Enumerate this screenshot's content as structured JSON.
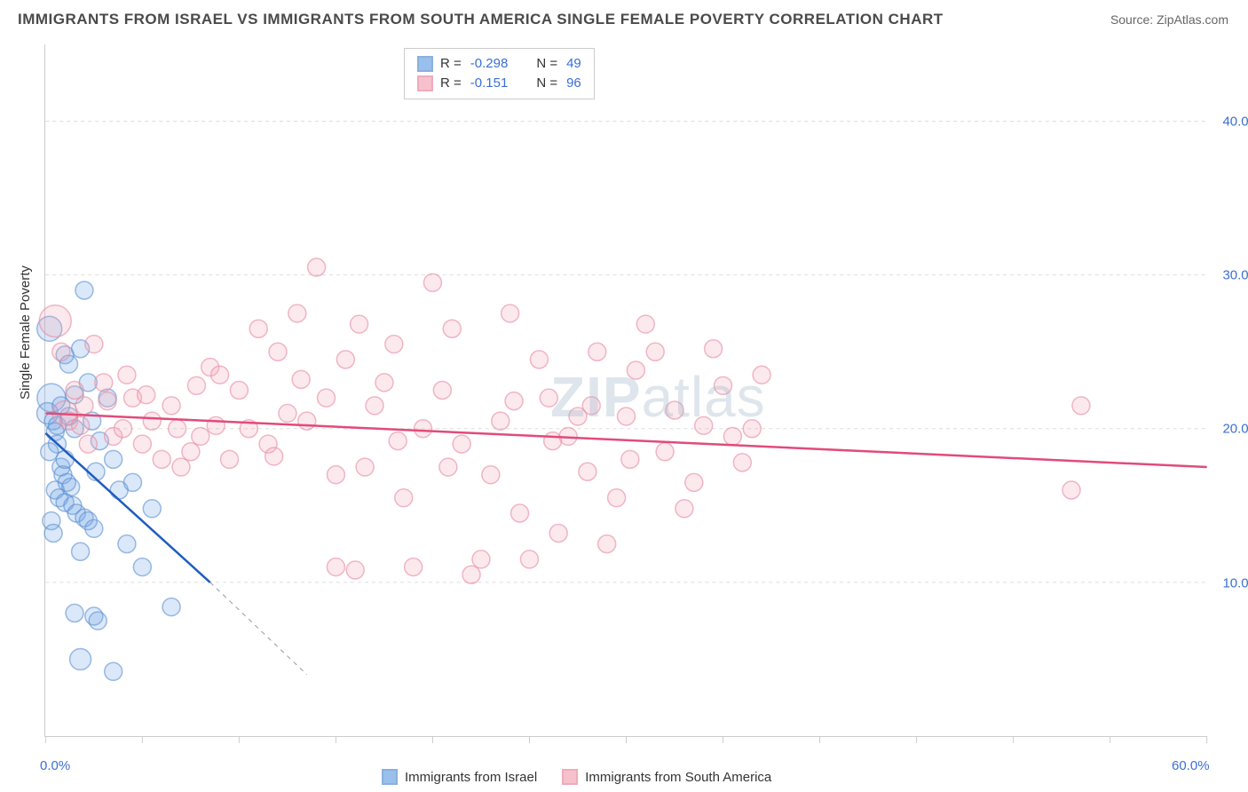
{
  "title": "IMMIGRANTS FROM ISRAEL VS IMMIGRANTS FROM SOUTH AMERICA SINGLE FEMALE POVERTY CORRELATION CHART",
  "source": "Source: ZipAtlas.com",
  "ylabel": "Single Female Poverty",
  "watermark": "ZIPatlas",
  "chart": {
    "type": "scatter",
    "xlim": [
      0,
      60
    ],
    "ylim": [
      0,
      45
    ],
    "xtick_positions": [
      0,
      5,
      10,
      15,
      20,
      25,
      30,
      35,
      40,
      45,
      50,
      55,
      60
    ],
    "xtick_labels": {
      "0": "0.0%",
      "60": "60.0%"
    },
    "ytick_positions": [
      10,
      20,
      30,
      40
    ],
    "ytick_labels": {
      "10": "10.0%",
      "20": "20.0%",
      "30": "30.0%",
      "40": "40.0%"
    },
    "grid_color": "#dddddd",
    "axis_color": "#cccccc",
    "background_color": "#ffffff",
    "tick_label_color": "#3b6fd4",
    "axis_label_color": "#333333",
    "title_color": "#4a4a4a",
    "title_fontsize": 17,
    "label_fontsize": 15,
    "marker_radius": 10,
    "marker_fill_opacity": 0.25,
    "marker_stroke_width": 1.5,
    "trendline_width": 2.5
  },
  "series": [
    {
      "id": "israel",
      "label": "Immigrants from Israel",
      "color": "#6fa5e6",
      "stroke": "#5b8fd1",
      "trend_color": "#1f5cc0",
      "R": "-0.298",
      "N": "49",
      "trendline": {
        "x1": 0,
        "y1": 19.7,
        "x2": 8.5,
        "y2": 10.0
      },
      "trendline_dashed": {
        "x1": 8.5,
        "y1": 10.0,
        "x2": 13.5,
        "y2": 4.0
      },
      "points": [
        {
          "x": 0.2,
          "y": 26.5,
          "r": 14
        },
        {
          "x": 0.3,
          "y": 22.0,
          "r": 16
        },
        {
          "x": 0.1,
          "y": 21.0,
          "r": 12
        },
        {
          "x": 0.4,
          "y": 20.5,
          "r": 10
        },
        {
          "x": 0.5,
          "y": 19.8,
          "r": 10
        },
        {
          "x": 0.6,
          "y": 19.0,
          "r": 10
        },
        {
          "x": 1.0,
          "y": 24.8,
          "r": 10
        },
        {
          "x": 1.2,
          "y": 24.2,
          "r": 10
        },
        {
          "x": 1.5,
          "y": 22.2,
          "r": 10
        },
        {
          "x": 1.8,
          "y": 25.2,
          "r": 10
        },
        {
          "x": 2.0,
          "y": 29.0,
          "r": 10
        },
        {
          "x": 2.2,
          "y": 23.0,
          "r": 10
        },
        {
          "x": 0.8,
          "y": 17.5,
          "r": 10
        },
        {
          "x": 0.9,
          "y": 17.0,
          "r": 10
        },
        {
          "x": 1.1,
          "y": 16.5,
          "r": 10
        },
        {
          "x": 1.3,
          "y": 16.2,
          "r": 10
        },
        {
          "x": 0.5,
          "y": 16.0,
          "r": 10
        },
        {
          "x": 0.7,
          "y": 15.5,
          "r": 10
        },
        {
          "x": 1.0,
          "y": 15.2,
          "r": 10
        },
        {
          "x": 1.4,
          "y": 15.0,
          "r": 10
        },
        {
          "x": 1.6,
          "y": 14.5,
          "r": 10
        },
        {
          "x": 2.0,
          "y": 14.2,
          "r": 10
        },
        {
          "x": 2.2,
          "y": 14.0,
          "r": 10
        },
        {
          "x": 2.5,
          "y": 13.5,
          "r": 10
        },
        {
          "x": 1.8,
          "y": 12.0,
          "r": 10
        },
        {
          "x": 2.8,
          "y": 19.2,
          "r": 10
        },
        {
          "x": 3.2,
          "y": 22.0,
          "r": 10
        },
        {
          "x": 3.5,
          "y": 18.0,
          "r": 10
        },
        {
          "x": 3.8,
          "y": 16.0,
          "r": 10
        },
        {
          "x": 4.5,
          "y": 16.5,
          "r": 10
        },
        {
          "x": 5.5,
          "y": 14.8,
          "r": 10
        },
        {
          "x": 1.5,
          "y": 8.0,
          "r": 10
        },
        {
          "x": 2.5,
          "y": 7.8,
          "r": 10
        },
        {
          "x": 2.7,
          "y": 7.5,
          "r": 10
        },
        {
          "x": 4.2,
          "y": 12.5,
          "r": 10
        },
        {
          "x": 6.5,
          "y": 8.4,
          "r": 10
        },
        {
          "x": 1.8,
          "y": 5.0,
          "r": 12
        },
        {
          "x": 3.5,
          "y": 4.2,
          "r": 10
        },
        {
          "x": 0.3,
          "y": 14.0,
          "r": 10
        },
        {
          "x": 0.4,
          "y": 13.2,
          "r": 10
        },
        {
          "x": 0.2,
          "y": 18.5,
          "r": 10
        },
        {
          "x": 0.6,
          "y": 20.2,
          "r": 10
        },
        {
          "x": 0.8,
          "y": 21.5,
          "r": 10
        },
        {
          "x": 1.2,
          "y": 20.8,
          "r": 10
        },
        {
          "x": 1.5,
          "y": 20.0,
          "r": 10
        },
        {
          "x": 1.0,
          "y": 18.0,
          "r": 10
        },
        {
          "x": 2.4,
          "y": 20.5,
          "r": 10
        },
        {
          "x": 2.6,
          "y": 17.2,
          "r": 10
        },
        {
          "x": 5.0,
          "y": 11.0,
          "r": 10
        }
      ]
    },
    {
      "id": "south_america",
      "label": "Immigrants from South America",
      "color": "#f5a6b8",
      "stroke": "#e68aa0",
      "trend_color": "#e14b7a",
      "R": "-0.151",
      "N": "96",
      "trendline": {
        "x1": 0,
        "y1": 21.0,
        "x2": 60,
        "y2": 17.5
      },
      "points": [
        {
          "x": 0.5,
          "y": 27.0,
          "r": 18
        },
        {
          "x": 1.0,
          "y": 21.0,
          "r": 14
        },
        {
          "x": 1.2,
          "y": 20.5,
          "r": 10
        },
        {
          "x": 1.5,
          "y": 22.5,
          "r": 10
        },
        {
          "x": 2.0,
          "y": 21.5,
          "r": 10
        },
        {
          "x": 2.5,
          "y": 25.5,
          "r": 10
        },
        {
          "x": 3.0,
          "y": 23.0,
          "r": 10
        },
        {
          "x": 3.5,
          "y": 19.5,
          "r": 10
        },
        {
          "x": 4.0,
          "y": 20.0,
          "r": 10
        },
        {
          "x": 4.5,
          "y": 22.0,
          "r": 10
        },
        {
          "x": 5.0,
          "y": 19.0,
          "r": 10
        },
        {
          "x": 5.5,
          "y": 20.5,
          "r": 10
        },
        {
          "x": 6.0,
          "y": 18.0,
          "r": 10
        },
        {
          "x": 6.5,
          "y": 21.5,
          "r": 10
        },
        {
          "x": 7.0,
          "y": 17.5,
          "r": 10
        },
        {
          "x": 7.5,
          "y": 18.5,
          "r": 10
        },
        {
          "x": 8.0,
          "y": 19.5,
          "r": 10
        },
        {
          "x": 8.5,
          "y": 24.0,
          "r": 10
        },
        {
          "x": 9.0,
          "y": 23.5,
          "r": 10
        },
        {
          "x": 9.5,
          "y": 18.0,
          "r": 10
        },
        {
          "x": 10.0,
          "y": 22.5,
          "r": 10
        },
        {
          "x": 10.5,
          "y": 20.0,
          "r": 10
        },
        {
          "x": 11.0,
          "y": 26.5,
          "r": 10
        },
        {
          "x": 11.5,
          "y": 19.0,
          "r": 10
        },
        {
          "x": 12.0,
          "y": 25.0,
          "r": 10
        },
        {
          "x": 12.5,
          "y": 21.0,
          "r": 10
        },
        {
          "x": 13.0,
          "y": 27.5,
          "r": 10
        },
        {
          "x": 13.5,
          "y": 20.5,
          "r": 10
        },
        {
          "x": 14.0,
          "y": 30.5,
          "r": 10
        },
        {
          "x": 14.5,
          "y": 22.0,
          "r": 10
        },
        {
          "x": 15.0,
          "y": 17.0,
          "r": 10
        },
        {
          "x": 15.0,
          "y": 11.0,
          "r": 10
        },
        {
          "x": 15.5,
          "y": 24.5,
          "r": 10
        },
        {
          "x": 16.0,
          "y": 10.8,
          "r": 10
        },
        {
          "x": 16.5,
          "y": 17.5,
          "r": 10
        },
        {
          "x": 17.0,
          "y": 21.5,
          "r": 10
        },
        {
          "x": 17.5,
          "y": 23.0,
          "r": 10
        },
        {
          "x": 18.0,
          "y": 25.5,
          "r": 10
        },
        {
          "x": 18.5,
          "y": 15.5,
          "r": 10
        },
        {
          "x": 19.0,
          "y": 11.0,
          "r": 10
        },
        {
          "x": 19.5,
          "y": 20.0,
          "r": 10
        },
        {
          "x": 20.0,
          "y": 29.5,
          "r": 10
        },
        {
          "x": 20.5,
          "y": 22.5,
          "r": 10
        },
        {
          "x": 21.0,
          "y": 26.5,
          "r": 10
        },
        {
          "x": 21.5,
          "y": 19.0,
          "r": 10
        },
        {
          "x": 22.0,
          "y": 10.5,
          "r": 10
        },
        {
          "x": 22.5,
          "y": 11.5,
          "r": 10
        },
        {
          "x": 23.0,
          "y": 17.0,
          "r": 10
        },
        {
          "x": 23.5,
          "y": 20.5,
          "r": 10
        },
        {
          "x": 24.0,
          "y": 27.5,
          "r": 10
        },
        {
          "x": 24.5,
          "y": 14.5,
          "r": 10
        },
        {
          "x": 25.0,
          "y": 11.5,
          "r": 10
        },
        {
          "x": 25.5,
          "y": 24.5,
          "r": 10
        },
        {
          "x": 26.0,
          "y": 22.0,
          "r": 10
        },
        {
          "x": 26.5,
          "y": 13.2,
          "r": 10
        },
        {
          "x": 27.0,
          "y": 19.5,
          "r": 10
        },
        {
          "x": 27.5,
          "y": 20.8,
          "r": 10
        },
        {
          "x": 28.0,
          "y": 17.2,
          "r": 10
        },
        {
          "x": 28.5,
          "y": 25.0,
          "r": 10
        },
        {
          "x": 29.0,
          "y": 12.5,
          "r": 10
        },
        {
          "x": 29.5,
          "y": 15.5,
          "r": 10
        },
        {
          "x": 30.0,
          "y": 20.8,
          "r": 10
        },
        {
          "x": 30.5,
          "y": 23.8,
          "r": 10
        },
        {
          "x": 31.0,
          "y": 26.8,
          "r": 10
        },
        {
          "x": 31.5,
          "y": 25.0,
          "r": 10
        },
        {
          "x": 32.0,
          "y": 18.5,
          "r": 10
        },
        {
          "x": 33.0,
          "y": 14.8,
          "r": 10
        },
        {
          "x": 33.5,
          "y": 16.5,
          "r": 10
        },
        {
          "x": 34.0,
          "y": 20.2,
          "r": 10
        },
        {
          "x": 34.5,
          "y": 25.2,
          "r": 10
        },
        {
          "x": 35.0,
          "y": 22.8,
          "r": 10
        },
        {
          "x": 36.0,
          "y": 17.8,
          "r": 10
        },
        {
          "x": 36.5,
          "y": 20.0,
          "r": 10
        },
        {
          "x": 37.0,
          "y": 23.5,
          "r": 10
        },
        {
          "x": 53.5,
          "y": 21.5,
          "r": 10
        },
        {
          "x": 53.0,
          "y": 16.0,
          "r": 10
        },
        {
          "x": 2.2,
          "y": 19.0,
          "r": 10
        },
        {
          "x": 3.2,
          "y": 21.8,
          "r": 10
        },
        {
          "x": 4.2,
          "y": 23.5,
          "r": 10
        },
        {
          "x": 5.2,
          "y": 22.2,
          "r": 10
        },
        {
          "x": 6.8,
          "y": 20.0,
          "r": 10
        },
        {
          "x": 7.8,
          "y": 22.8,
          "r": 10
        },
        {
          "x": 8.8,
          "y": 20.2,
          "r": 10
        },
        {
          "x": 11.8,
          "y": 18.2,
          "r": 10
        },
        {
          "x": 13.2,
          "y": 23.2,
          "r": 10
        },
        {
          "x": 16.2,
          "y": 26.8,
          "r": 10
        },
        {
          "x": 18.2,
          "y": 19.2,
          "r": 10
        },
        {
          "x": 20.8,
          "y": 17.5,
          "r": 10
        },
        {
          "x": 24.2,
          "y": 21.8,
          "r": 10
        },
        {
          "x": 26.2,
          "y": 19.2,
          "r": 10
        },
        {
          "x": 28.2,
          "y": 21.5,
          "r": 10
        },
        {
          "x": 30.2,
          "y": 18.0,
          "r": 10
        },
        {
          "x": 32.5,
          "y": 21.2,
          "r": 10
        },
        {
          "x": 35.5,
          "y": 19.5,
          "r": 10
        },
        {
          "x": 1.8,
          "y": 20.2,
          "r": 10
        },
        {
          "x": 0.8,
          "y": 25.0,
          "r": 10
        }
      ]
    }
  ],
  "legend_bottom_labels": {
    "israel": "Immigrants from Israel",
    "south_america": "Immigrants from South America"
  },
  "legend_top": {
    "r_label": "R =",
    "n_label": "N ="
  }
}
